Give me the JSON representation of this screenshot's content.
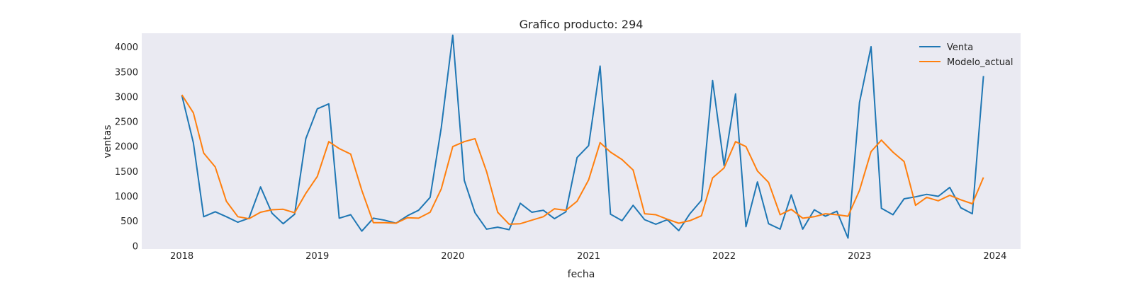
{
  "chart_data": {
    "type": "line",
    "title": "Grafico producto: 294",
    "xlabel": "fecha",
    "ylabel": "ventas",
    "x_ticks": [
      "2018",
      "2019",
      "2020",
      "2021",
      "2022",
      "2023",
      "2024"
    ],
    "y_ticks": [
      "0",
      "500",
      "1000",
      "1500",
      "2000",
      "2500",
      "3000",
      "3500",
      "4000"
    ],
    "ylim": [
      -60,
      4280
    ],
    "xlim": [
      "2017-09-15",
      "2024-03-10"
    ],
    "grid": false,
    "legend_position": "top-right",
    "x_start": "2018-01",
    "x_frequency": "monthly",
    "series": [
      {
        "name": "Venta",
        "color": "#1f77b4",
        "values": [
          3030,
          2080,
          590,
          690,
          590,
          480,
          560,
          1190,
          660,
          450,
          640,
          2160,
          2760,
          2860,
          560,
          630,
          300,
          560,
          520,
          460,
          610,
          720,
          980,
          2380,
          4240,
          1320,
          670,
          340,
          380,
          330,
          860,
          680,
          720,
          550,
          690,
          1780,
          2020,
          3620,
          640,
          510,
          820,
          530,
          440,
          530,
          310,
          650,
          920,
          3330,
          1620,
          3060,
          390,
          1290,
          450,
          340,
          1030,
          340,
          730,
          600,
          700,
          160,
          2890,
          4010,
          760,
          630,
          950,
          990,
          1040,
          1000,
          1180,
          770,
          650,
          3420
        ]
      },
      {
        "name": "Modelo_actual",
        "color": "#ff7f0e",
        "values": [
          3040,
          2680,
          1870,
          1590,
          900,
          590,
          550,
          680,
          730,
          740,
          670,
          1060,
          1400,
          2100,
          1960,
          1850,
          1120,
          470,
          470,
          460,
          570,
          560,
          680,
          1150,
          2000,
          2100,
          2160,
          1500,
          680,
          440,
          450,
          520,
          590,
          750,
          720,
          900,
          1330,
          2080,
          1890,
          1740,
          1530,
          650,
          630,
          540,
          460,
          510,
          610,
          1370,
          1570,
          2100,
          2000,
          1510,
          1280,
          630,
          740,
          560,
          590,
          650,
          630,
          600,
          1120,
          1900,
          2130,
          1890,
          1700,
          820,
          980,
          910,
          1020,
          930,
          850,
          1380
        ]
      }
    ]
  }
}
